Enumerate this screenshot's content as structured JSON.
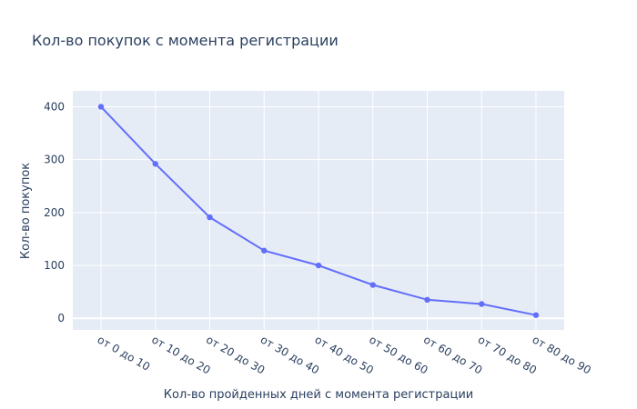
{
  "chart_data": {
    "type": "line",
    "title": "Кол-во покупок с момента регистрации",
    "xlabel": "Кол-во пройденных дней с момента регистрации",
    "ylabel": "Кол-во покупок",
    "categories": [
      "от 0 до 10",
      "от 10 до 20",
      "от 20 до 30",
      "от 30 до 40",
      "от 40 до 50",
      "от 50 до 60",
      "от 60 до 70",
      "от 70 до 80",
      "от 80 до 90"
    ],
    "series": [
      {
        "values": [
          400,
          292,
          191,
          128,
          100,
          63,
          35,
          27,
          6
        ]
      }
    ],
    "ylim": [
      -22,
      430
    ],
    "yticks": [
      0,
      100,
      200,
      300,
      400
    ],
    "grid": true,
    "legend": "none",
    "colors": {
      "plot_background": "#e5ecf6",
      "grid": "#ffffff",
      "series": "#636efa",
      "text": "#2a3f5f"
    }
  }
}
